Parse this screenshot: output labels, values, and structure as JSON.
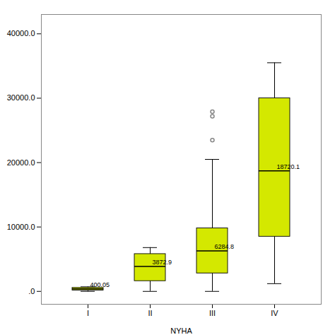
{
  "chart_data": {
    "type": "box",
    "xlabel": "NYHA",
    "categories": [
      "I",
      "II",
      "III",
      "IV"
    ],
    "whislo": [
      0,
      0,
      0,
      1200
    ],
    "q1": [
      150,
      1600,
      2800,
      8500
    ],
    "median": [
      400.05,
      3872.9,
      6284.8,
      18720.1
    ],
    "q3": [
      550,
      5800,
      9800,
      30000
    ],
    "whishi": [
      700,
      6800,
      20500,
      35500
    ],
    "fliers": [
      [],
      [],
      [
        23500,
        27200,
        27900
      ],
      []
    ],
    "data_labels": true,
    "value_labels": [
      "400.05",
      "3872.9",
      "6284.8",
      "18720.1"
    ],
    "color": "#d4e800",
    "ylim": [
      -2000,
      43000
    ],
    "yticks": [
      {
        "value": 0,
        "label": ".0"
      },
      {
        "value": 10000,
        "label": "10000.0"
      },
      {
        "value": 20000,
        "label": "20000.0"
      },
      {
        "value": 30000,
        "label": "30000.0"
      },
      {
        "value": 40000,
        "label": "40000.0"
      }
    ],
    "grid": false
  }
}
